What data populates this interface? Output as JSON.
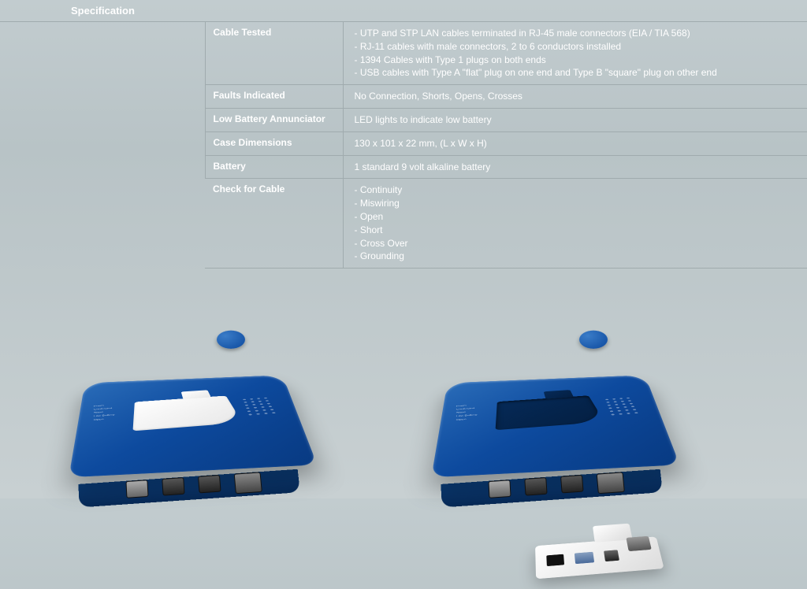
{
  "title": "Specification",
  "rows": [
    {
      "label": "Cable Tested",
      "lines": [
        "- UTP and STP LAN cables terminated in RJ-45 male connectors (EIA / TIA 568)",
        "- RJ-11 cables with male connectors, 2 to 6 conductors installed",
        "- 1394 Cables with Type 1 plugs on both ends",
        "- USB cables with Type A \"flat\" plug on one end and Type B \"square\" plug on other end"
      ]
    },
    {
      "label": "Faults Indicated",
      "lines": [
        "No Connection, Shorts, Opens, Crosses"
      ]
    },
    {
      "label": "Low Battery Annunciator",
      "lines": [
        "LED lights to indicate low battery"
      ]
    },
    {
      "label": "Case Dimensions",
      "lines": [
        "130 x 101 x 22 mm, (L x W x H)"
      ]
    },
    {
      "label": "Battery",
      "lines": [
        "1 standard 9 volt alkaline battery"
      ]
    },
    {
      "label": "Check for Cable",
      "lines": [
        "- Continuity",
        "- Miswiring",
        "- Open",
        "- Short",
        "- Cross Over",
        "- Grounding"
      ]
    }
  ],
  "colors": {
    "device_blue_top": "#2a6cb8",
    "device_blue_mid": "#0d4a9e",
    "device_blue_dark": "#083a82",
    "insert_white": "#ffffff",
    "bg_top": "#c2cccf",
    "bg_bottom": "#c8d0d2",
    "border": "#a0abae",
    "text": "#ffffff"
  },
  "device_labels": [
    "Power",
    "Connected",
    "Short",
    "Low Battery",
    "Open"
  ]
}
